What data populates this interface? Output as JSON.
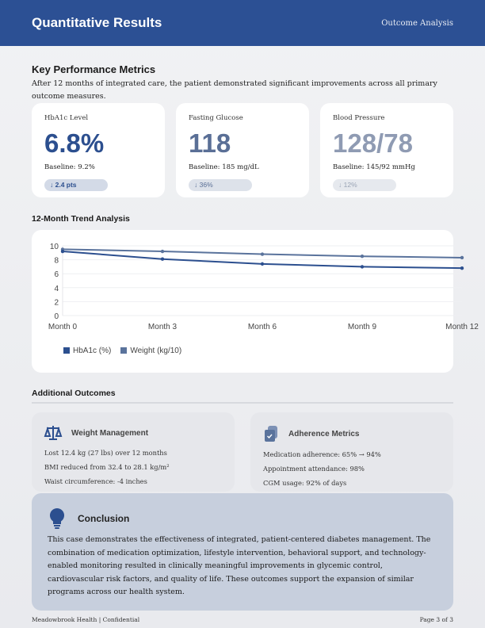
{
  "header": {
    "title": "Quantitative Results",
    "subtitle": "Outcome Analysis"
  },
  "kpi": {
    "heading": "Key Performance Metrics",
    "intro": "After 12 months of integrated care, the patient demonstrated significant improvements across all primary outcome measures.",
    "cards": [
      {
        "label": "HbA1c Level",
        "value": "6.8%",
        "baseline": "Baseline: 9.2%",
        "change": "↓ 2.4 pts",
        "color": "#2c4f8f"
      },
      {
        "label": "Fasting Glucose",
        "value": "118",
        "baseline": "Baseline: 185 mg/dL",
        "change": "↓ 36%",
        "color": "#5a6f96"
      },
      {
        "label": "Blood Pressure",
        "value": "128/78",
        "baseline": "Baseline: 145/92 mmHg",
        "change": "↓ 12%",
        "color": "#8f9bb3"
      }
    ]
  },
  "trend": {
    "heading": "12-Month Trend Analysis"
  },
  "chart_data": {
    "type": "line",
    "categories": [
      "Month 0",
      "Month 3",
      "Month 6",
      "Month 9",
      "Month 12"
    ],
    "ylim": [
      0,
      10
    ],
    "yticks": [
      "0",
      "2",
      "4",
      "6",
      "8",
      "10"
    ],
    "grid": true,
    "legend": "bottom-left",
    "series": [
      {
        "name": "HbA1c (%)",
        "values": [
          9.2,
          8.1,
          7.4,
          7.0,
          6.8
        ],
        "color": "#2c4f8f"
      },
      {
        "name": "Weight (kg/10)",
        "values": [
          9.5,
          9.2,
          8.8,
          8.5,
          8.3
        ],
        "color": "#5a739c"
      }
    ]
  },
  "outcomes": {
    "heading": "Additional Outcomes",
    "weight": {
      "title": "Weight Management",
      "icon": "scale-icon",
      "items": [
        "Lost 12.4 kg (27 lbs) over 12 months",
        "BMI reduced from 32.4 to 28.1 kg/m²",
        "Waist circumference: -4 inches"
      ]
    },
    "adherence": {
      "title": "Adherence Metrics",
      "icon": "clipboard-check-icon",
      "items": [
        "Medication adherence: 65% → 94%",
        "Appointment attendance: 98%",
        "CGM usage: 92% of days"
      ]
    }
  },
  "conclusion": {
    "title": "Conclusion",
    "icon": "lightbulb-icon",
    "text": "This case demonstrates the effectiveness of integrated, patient-centered diabetes management. The combination of medication optimization, lifestyle intervention, behavioral support, and technology-enabled monitoring resulted in clinically meaningful improvements in glycemic control, cardiovascular risk factors, and quality of life. These outcomes support the expansion of similar programs across our health system."
  },
  "footer": {
    "left": "Meadowbrook Health | Confidential",
    "right": "Page 3 of 3"
  }
}
